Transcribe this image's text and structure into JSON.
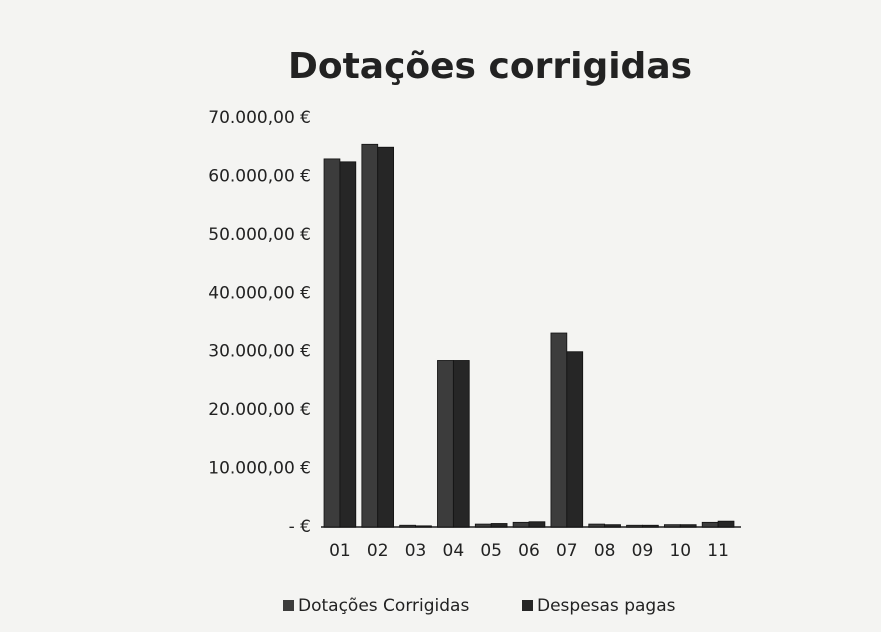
{
  "chart_data": {
    "type": "bar",
    "title": "Dotações corrigidas",
    "categories": [
      "01",
      "02",
      "03",
      "04",
      "05",
      "06",
      "07",
      "08",
      "09",
      "10",
      "11"
    ],
    "series": [
      {
        "name": "Dotações Corrigidas",
        "color": "#3c3c3c",
        "values": [
          63000,
          65500,
          300,
          28500,
          500,
          800,
          33200,
          500,
          300,
          400,
          800
        ]
      },
      {
        "name": "Despesas pagas",
        "color": "#262626",
        "values": [
          62500,
          65000,
          200,
          28500,
          600,
          900,
          30000,
          400,
          300,
          400,
          1000
        ]
      }
    ],
    "ylim": [
      0,
      70000
    ],
    "yticks": [
      {
        "value": 0,
        "label": "- €"
      },
      {
        "value": 10000,
        "label": "10.000,00 €"
      },
      {
        "value": 20000,
        "label": "20.000,00 €"
      },
      {
        "value": 30000,
        "label": "30.000,00 €"
      },
      {
        "value": 40000,
        "label": "40.000,00 €"
      },
      {
        "value": 50000,
        "label": "50.000,00 €"
      },
      {
        "value": 60000,
        "label": "60.000,00 €"
      },
      {
        "value": 70000,
        "label": "70.000,00 €"
      }
    ],
    "grid": false,
    "legend": "bottom"
  }
}
